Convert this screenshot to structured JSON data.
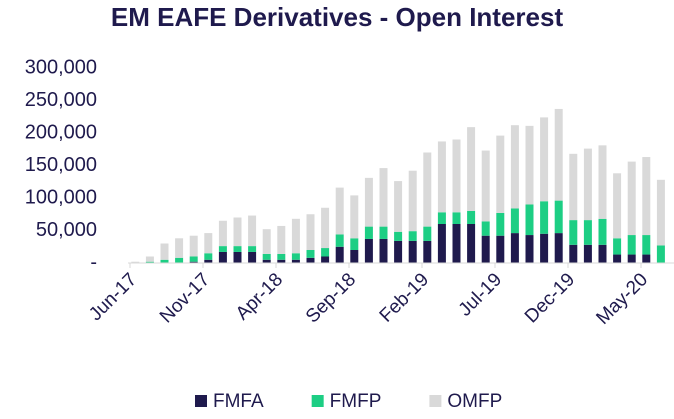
{
  "chart_data": {
    "type": "stacked_bar",
    "title": "EM EAFE Derivatives - Open Interest",
    "categories": [
      "Jun-17",
      null,
      null,
      null,
      null,
      "Nov-17",
      null,
      null,
      null,
      null,
      "Apr-18",
      null,
      null,
      null,
      null,
      "Sep-18",
      null,
      null,
      null,
      null,
      "Feb-19",
      null,
      null,
      null,
      null,
      "Jul-19",
      null,
      null,
      null,
      null,
      "Dec-19",
      null,
      null,
      null,
      null,
      "May-20",
      null
    ],
    "series": [
      {
        "name": "FMFA",
        "color": "#1f1a4d",
        "values": [
          0,
          0,
          0,
          0,
          2000,
          5000,
          17000,
          17000,
          17000,
          5000,
          5000,
          5000,
          8000,
          10000,
          25000,
          20000,
          37000,
          37000,
          34000,
          34000,
          34000,
          60000,
          60000,
          60000,
          42000,
          42000,
          46000,
          43000,
          45000,
          46000,
          28000,
          28000,
          28000,
          13000,
          13000,
          13000,
          0
        ]
      },
      {
        "name": "FMFP",
        "color": "#1dce84",
        "values": [
          0,
          2000,
          5000,
          8000,
          8000,
          10000,
          9000,
          9000,
          9000,
          9000,
          9000,
          10000,
          12000,
          13000,
          19000,
          18000,
          19000,
          19000,
          14000,
          15000,
          22000,
          18000,
          18000,
          20000,
          22000,
          35000,
          38000,
          47000,
          50000,
          50000,
          38000,
          38000,
          40000,
          25000,
          30000,
          30000,
          27000
        ]
      },
      {
        "name": "OMFP",
        "color": "#d9d9d9",
        "values": [
          2000,
          8000,
          25000,
          30000,
          32000,
          31000,
          39000,
          44000,
          47000,
          38000,
          43000,
          53000,
          55000,
          62000,
          72000,
          66000,
          75000,
          90000,
          78000,
          93000,
          114000,
          109000,
          112000,
          129000,
          109000,
          119000,
          128000,
          121000,
          129000,
          141000,
          102000,
          110000,
          113000,
          100000,
          113000,
          120000,
          101000
        ]
      }
    ],
    "ylim": [
      0,
      300000
    ],
    "yticks": [
      {
        "value": 0,
        "label": "-"
      },
      {
        "value": 50000,
        "label": "50,000"
      },
      {
        "value": 100000,
        "label": "100,000"
      },
      {
        "value": 150000,
        "label": "150,000"
      },
      {
        "value": 200000,
        "label": "200,000"
      },
      {
        "value": 250000,
        "label": "250,000"
      },
      {
        "value": 300000,
        "label": "300,000"
      }
    ],
    "legend": "bottom"
  }
}
